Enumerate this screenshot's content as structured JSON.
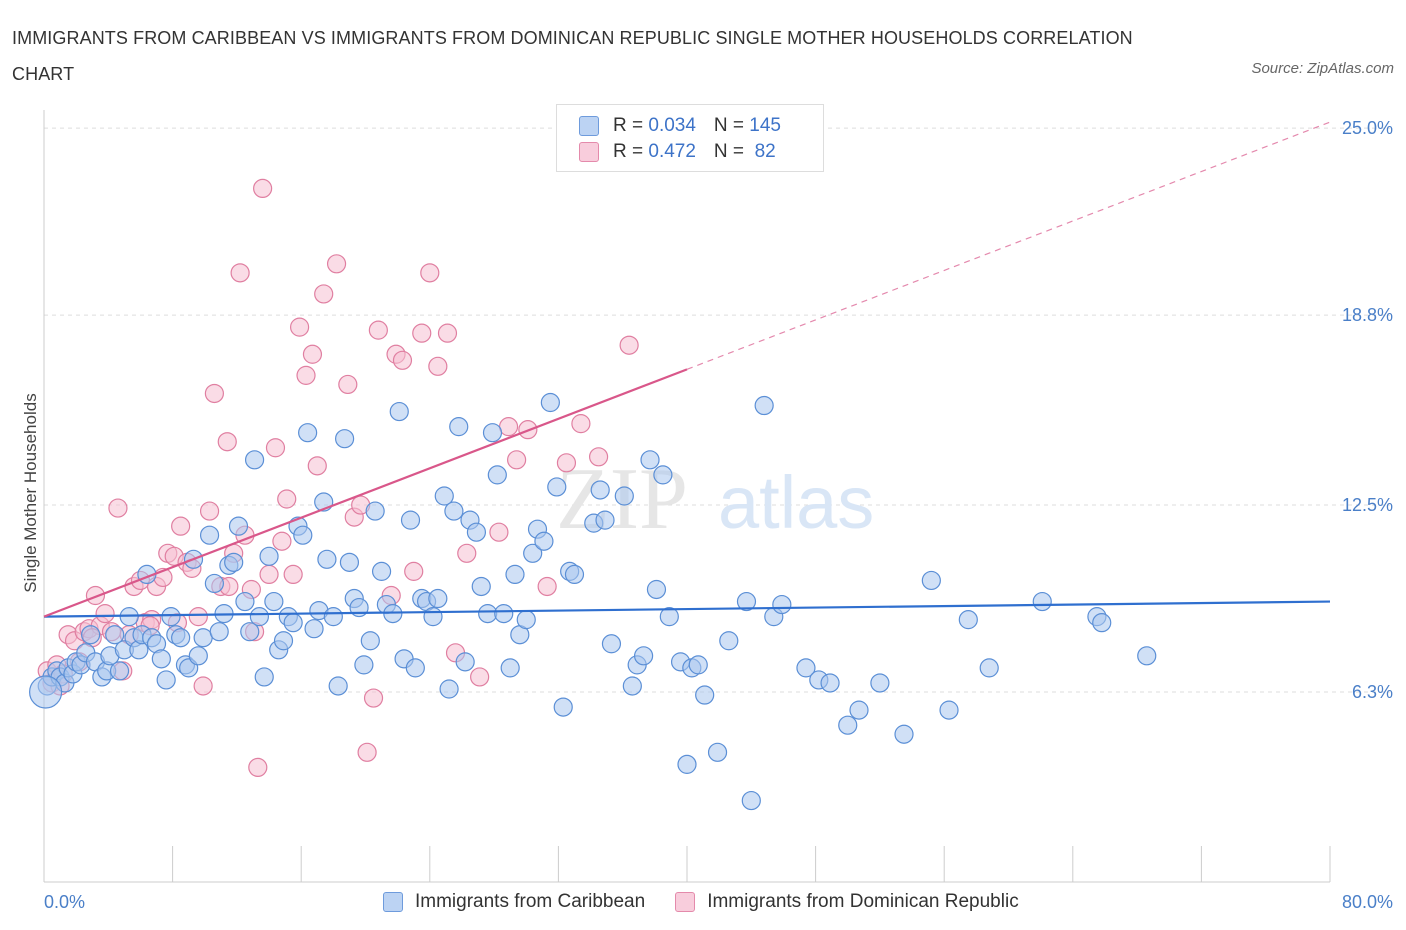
{
  "title": "IMMIGRANTS FROM CARIBBEAN VS IMMIGRANTS FROM DOMINICAN REPUBLIC SINGLE MOTHER HOUSEHOLDS CORRELATION CHART",
  "source": "Source: ZipAtlas.com",
  "watermark": {
    "zip": "ZIP",
    "atlas": "atlas"
  },
  "colors": {
    "caribbean": "#5b8fd6",
    "caribbean_fill": "#a9c6ef",
    "dominican": "#e07fa1",
    "dominican_fill": "#f5bfd1",
    "caribbean_line": "#2f6fcf",
    "dominican_line": "#d9578a"
  },
  "legend_top": [
    {
      "r_label": "R = ",
      "r_value": "0.034",
      "n_label": "N = ",
      "n_value": "145"
    },
    {
      "r_label": "R = ",
      "r_value": "0.472",
      "n_label": "N = ",
      "n_value": " 82"
    }
  ],
  "legend_bottom": [
    "Immigrants from Caribbean",
    "Immigrants from Dominican Republic"
  ],
  "chart_data": {
    "type": "scatter",
    "title": "IMMIGRANTS FROM CARIBBEAN VS IMMIGRANTS FROM DOMINICAN REPUBLIC SINGLE MOTHER HOUSEHOLDS CORRELATION CHART",
    "xlabel": "",
    "ylabel": "Single Mother Households",
    "xlim": [
      0,
      80
    ],
    "ylim": [
      0,
      25.6
    ],
    "x_tick_labels": [
      "0.0%",
      "80.0%"
    ],
    "y_ticks": [
      6.3,
      12.5,
      18.8,
      25.0
    ],
    "y_tick_labels": [
      "6.3%",
      "12.5%",
      "18.8%",
      "25.0%"
    ],
    "grid": true,
    "legend": "top-center",
    "series": [
      {
        "name": "Immigrants from Caribbean",
        "R": 0.034,
        "N": 145,
        "trend": {
          "x": [
            0,
            80
          ],
          "y": [
            8.8,
            9.3
          ]
        },
        "points": [
          [
            0.2,
            6.5
          ],
          [
            0.5,
            6.8
          ],
          [
            0.8,
            7.0
          ],
          [
            1.0,
            6.8
          ],
          [
            1.3,
            6.6
          ],
          [
            1.5,
            7.1
          ],
          [
            1.8,
            6.9
          ],
          [
            2.0,
            7.3
          ],
          [
            2.3,
            7.2
          ],
          [
            2.6,
            7.6
          ],
          [
            2.9,
            8.2
          ],
          [
            3.2,
            7.3
          ],
          [
            3.6,
            6.8
          ],
          [
            3.9,
            7.0
          ],
          [
            4.1,
            7.5
          ],
          [
            4.4,
            8.2
          ],
          [
            4.7,
            7.0
          ],
          [
            5.0,
            7.7
          ],
          [
            5.3,
            8.8
          ],
          [
            5.6,
            8.1
          ],
          [
            5.9,
            7.7
          ],
          [
            6.1,
            8.2
          ],
          [
            6.4,
            10.2
          ],
          [
            6.7,
            8.1
          ],
          [
            7.0,
            7.9
          ],
          [
            7.3,
            7.4
          ],
          [
            7.6,
            6.7
          ],
          [
            7.9,
            8.8
          ],
          [
            8.2,
            8.2
          ],
          [
            8.5,
            8.1
          ],
          [
            8.8,
            7.2
          ],
          [
            9.0,
            7.1
          ],
          [
            9.3,
            10.7
          ],
          [
            9.6,
            7.5
          ],
          [
            9.9,
            8.1
          ],
          [
            10.3,
            11.5
          ],
          [
            10.6,
            9.9
          ],
          [
            10.9,
            8.3
          ],
          [
            11.2,
            8.9
          ],
          [
            11.5,
            10.5
          ],
          [
            11.8,
            10.6
          ],
          [
            12.1,
            11.8
          ],
          [
            12.5,
            9.3
          ],
          [
            12.8,
            8.3
          ],
          [
            13.1,
            14.0
          ],
          [
            13.4,
            8.8
          ],
          [
            13.7,
            6.8
          ],
          [
            14.0,
            10.8
          ],
          [
            14.3,
            9.3
          ],
          [
            14.6,
            7.7
          ],
          [
            14.9,
            8.0
          ],
          [
            15.2,
            8.8
          ],
          [
            15.5,
            8.6
          ],
          [
            15.8,
            11.8
          ],
          [
            16.1,
            11.5
          ],
          [
            16.4,
            14.9
          ],
          [
            16.8,
            8.4
          ],
          [
            17.1,
            9.0
          ],
          [
            17.4,
            12.6
          ],
          [
            17.6,
            10.7
          ],
          [
            18.0,
            8.8
          ],
          [
            18.3,
            6.5
          ],
          [
            18.7,
            14.7
          ],
          [
            19.0,
            10.6
          ],
          [
            19.3,
            9.4
          ],
          [
            19.6,
            9.1
          ],
          [
            19.9,
            7.2
          ],
          [
            20.3,
            8.0
          ],
          [
            20.6,
            12.3
          ],
          [
            21.0,
            10.3
          ],
          [
            21.3,
            9.2
          ],
          [
            21.7,
            8.9
          ],
          [
            22.1,
            15.6
          ],
          [
            22.4,
            7.4
          ],
          [
            22.8,
            12.0
          ],
          [
            23.1,
            7.1
          ],
          [
            23.5,
            9.4
          ],
          [
            23.8,
            9.3
          ],
          [
            24.2,
            8.8
          ],
          [
            24.5,
            9.4
          ],
          [
            24.9,
            12.8
          ],
          [
            25.2,
            6.4
          ],
          [
            25.5,
            12.3
          ],
          [
            25.8,
            15.1
          ],
          [
            26.2,
            7.3
          ],
          [
            26.5,
            12.0
          ],
          [
            26.9,
            11.6
          ],
          [
            27.2,
            9.8
          ],
          [
            27.6,
            8.9
          ],
          [
            27.9,
            14.9
          ],
          [
            28.2,
            13.5
          ],
          [
            28.6,
            8.9
          ],
          [
            29.0,
            7.1
          ],
          [
            29.3,
            10.2
          ],
          [
            29.6,
            8.2
          ],
          [
            30.0,
            8.7
          ],
          [
            30.4,
            10.9
          ],
          [
            30.7,
            11.7
          ],
          [
            31.1,
            11.3
          ],
          [
            31.5,
            15.9
          ],
          [
            31.9,
            13.1
          ],
          [
            32.3,
            5.8
          ],
          [
            32.7,
            10.3
          ],
          [
            33.0,
            10.2
          ],
          [
            34.2,
            11.9
          ],
          [
            34.6,
            13.0
          ],
          [
            34.9,
            12.0
          ],
          [
            35.3,
            7.9
          ],
          [
            36.1,
            12.8
          ],
          [
            36.6,
            6.5
          ],
          [
            36.9,
            7.2
          ],
          [
            37.3,
            7.5
          ],
          [
            37.7,
            14.0
          ],
          [
            38.1,
            9.7
          ],
          [
            38.5,
            13.5
          ],
          [
            38.9,
            8.8
          ],
          [
            39.6,
            7.3
          ],
          [
            40.0,
            3.9
          ],
          [
            40.3,
            7.1
          ],
          [
            40.7,
            7.2
          ],
          [
            41.1,
            6.2
          ],
          [
            41.9,
            4.3
          ],
          [
            42.6,
            8.0
          ],
          [
            43.7,
            9.3
          ],
          [
            44.8,
            15.8
          ],
          [
            45.4,
            8.8
          ],
          [
            45.9,
            9.2
          ],
          [
            47.4,
            7.1
          ],
          [
            48.2,
            6.7
          ],
          [
            48.9,
            6.6
          ],
          [
            50.0,
            5.2
          ],
          [
            50.7,
            5.7
          ],
          [
            52.0,
            6.6
          ],
          [
            53.5,
            4.9
          ],
          [
            55.2,
            10.0
          ],
          [
            56.3,
            5.7
          ],
          [
            57.5,
            8.7
          ],
          [
            58.8,
            7.1
          ],
          [
            62.1,
            9.3
          ],
          [
            65.5,
            8.8
          ],
          [
            65.8,
            8.6
          ],
          [
            68.6,
            7.5
          ],
          [
            44.0,
            2.7
          ],
          [
            0.1,
            6.3
          ]
        ]
      },
      {
        "name": "Immigrants from Dominican Republic",
        "R": 0.472,
        "N": 82,
        "trend": {
          "x": [
            0,
            40
          ],
          "y": [
            8.8,
            17.0
          ]
        },
        "trend_dashed": {
          "x": [
            40,
            80
          ],
          "y": [
            17.0,
            25.2
          ]
        },
        "points": [
          [
            0.2,
            7.0
          ],
          [
            0.5,
            6.6
          ],
          [
            0.8,
            7.2
          ],
          [
            1.2,
            6.9
          ],
          [
            1.5,
            8.2
          ],
          [
            1.9,
            8.0
          ],
          [
            2.2,
            7.3
          ],
          [
            2.5,
            8.3
          ],
          [
            2.8,
            8.4
          ],
          [
            3.2,
            9.5
          ],
          [
            3.5,
            8.5
          ],
          [
            3.8,
            8.9
          ],
          [
            4.2,
            8.3
          ],
          [
            4.6,
            12.4
          ],
          [
            4.9,
            7.0
          ],
          [
            5.3,
            8.2
          ],
          [
            5.6,
            9.8
          ],
          [
            6.0,
            10.0
          ],
          [
            6.3,
            8.6
          ],
          [
            6.7,
            8.7
          ],
          [
            7.0,
            9.8
          ],
          [
            7.4,
            10.1
          ],
          [
            7.7,
            10.9
          ],
          [
            8.1,
            10.8
          ],
          [
            8.5,
            11.8
          ],
          [
            8.9,
            10.6
          ],
          [
            9.2,
            10.4
          ],
          [
            9.6,
            8.8
          ],
          [
            9.9,
            6.5
          ],
          [
            10.3,
            12.3
          ],
          [
            10.6,
            16.2
          ],
          [
            11.0,
            9.8
          ],
          [
            11.4,
            14.6
          ],
          [
            11.8,
            10.9
          ],
          [
            12.2,
            20.2
          ],
          [
            12.5,
            11.5
          ],
          [
            12.9,
            9.7
          ],
          [
            13.3,
            3.8
          ],
          [
            13.6,
            23.0
          ],
          [
            14.0,
            10.2
          ],
          [
            14.4,
            14.4
          ],
          [
            14.8,
            11.3
          ],
          [
            15.1,
            12.7
          ],
          [
            15.5,
            10.2
          ],
          [
            15.9,
            18.4
          ],
          [
            16.3,
            16.8
          ],
          [
            16.7,
            17.5
          ],
          [
            17.0,
            13.8
          ],
          [
            17.4,
            19.5
          ],
          [
            18.2,
            20.5
          ],
          [
            18.9,
            16.5
          ],
          [
            19.3,
            12.1
          ],
          [
            19.7,
            12.5
          ],
          [
            20.1,
            4.3
          ],
          [
            20.5,
            6.1
          ],
          [
            20.8,
            18.3
          ],
          [
            21.6,
            9.5
          ],
          [
            21.9,
            17.5
          ],
          [
            22.3,
            17.3
          ],
          [
            23.0,
            10.3
          ],
          [
            23.5,
            18.2
          ],
          [
            24.0,
            20.2
          ],
          [
            24.5,
            17.1
          ],
          [
            25.1,
            18.2
          ],
          [
            25.6,
            7.6
          ],
          [
            26.3,
            10.9
          ],
          [
            27.1,
            6.8
          ],
          [
            28.3,
            11.6
          ],
          [
            28.9,
            15.1
          ],
          [
            29.4,
            14.0
          ],
          [
            30.1,
            15.0
          ],
          [
            31.3,
            9.8
          ],
          [
            32.5,
            13.9
          ],
          [
            33.4,
            15.2
          ],
          [
            34.5,
            14.1
          ],
          [
            36.4,
            17.8
          ],
          [
            13.1,
            8.3
          ],
          [
            11.5,
            9.8
          ],
          [
            8.3,
            8.6
          ],
          [
            3.0,
            8.1
          ],
          [
            1.0,
            6.5
          ],
          [
            6.6,
            8.5
          ]
        ]
      }
    ]
  }
}
